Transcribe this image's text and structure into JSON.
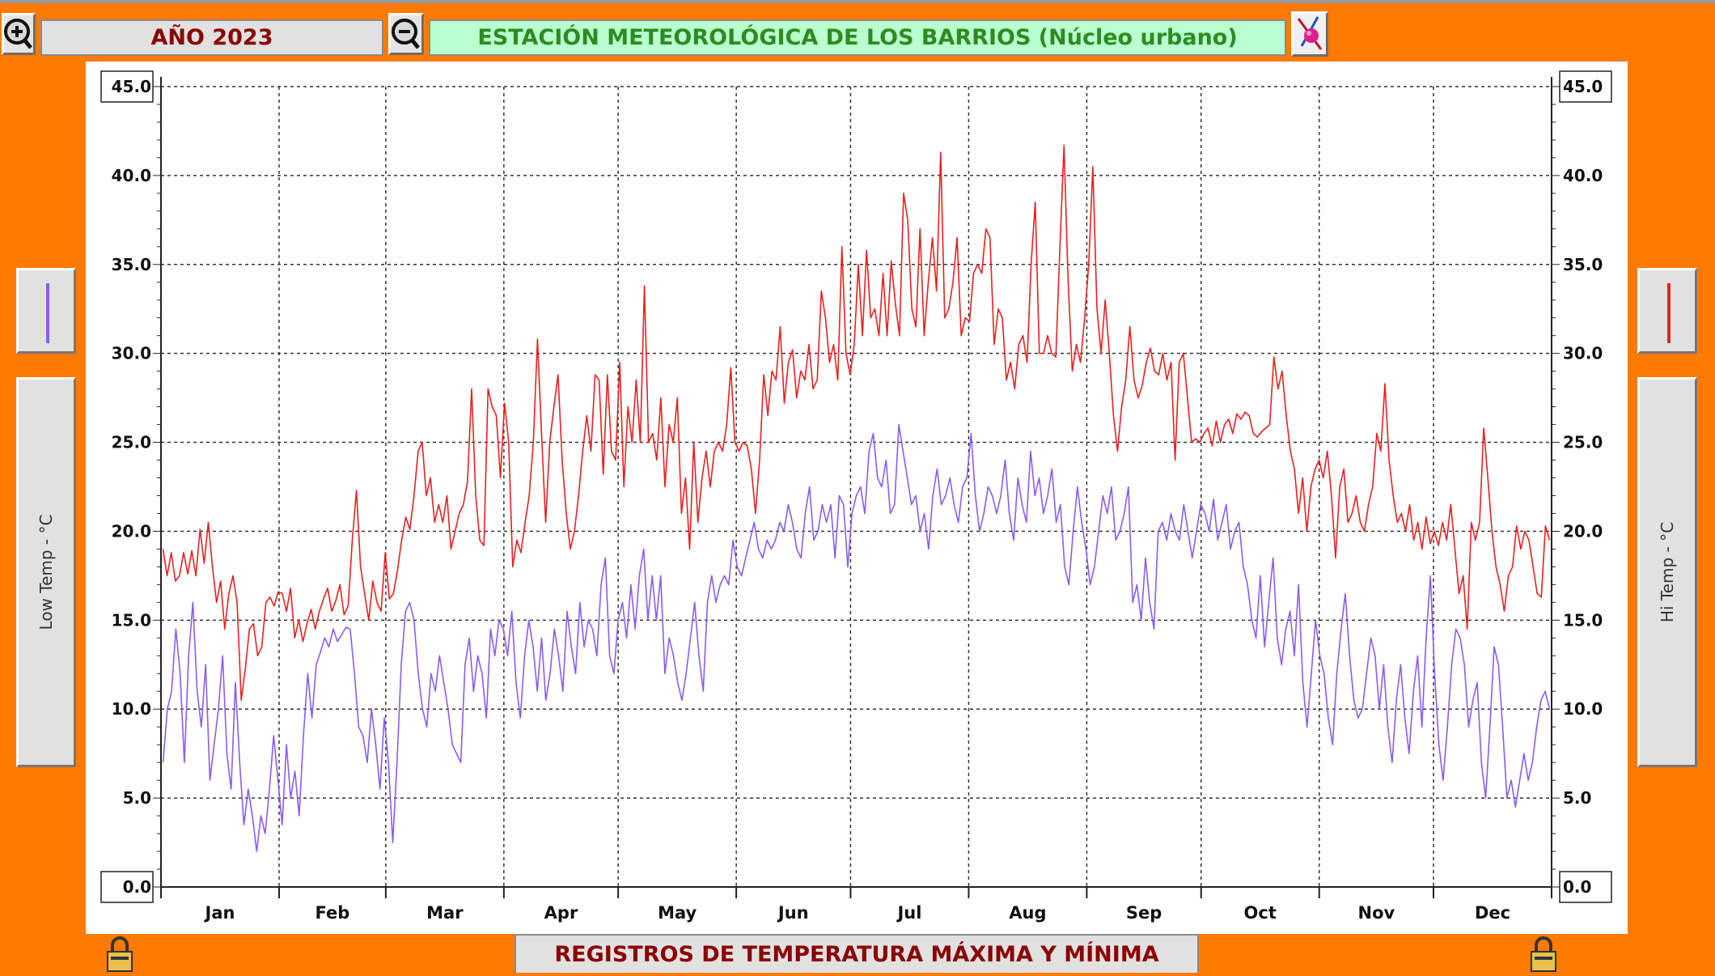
{
  "header": {
    "year_label": "AÑO 2023",
    "station_title": "ESTACIÓN METEOROLÓGICA DE LOS BARRIOS (Núcleo urbano)"
  },
  "footer": {
    "caption": "REGISTROS DE TEMPERATURA MÁXIMA Y MÍNIMA"
  },
  "left_panel": {
    "axis_label": "Low Temp - °C"
  },
  "right_panel": {
    "axis_label": "Hi Temp - °C"
  },
  "icons": {
    "zoom_in": "zoom-in-icon",
    "zoom_out": "zoom-out-icon",
    "paint": "paint-brush-icon",
    "lock": "lock-icon"
  },
  "colors": {
    "background": "#ff7a00",
    "hi_series": "#e82020",
    "low_series": "#8a5cf0",
    "year_text": "#8b0000",
    "station_text": "#2e8b22",
    "station_bg": "#b9ffcf"
  },
  "chart_data": {
    "type": "line",
    "ylabel_left": "Low Temp - °C",
    "ylabel_right": "Hi Temp - °C",
    "ylim": [
      0,
      45
    ],
    "yticks": [
      "0.0",
      "5.0",
      "10.0",
      "15.0",
      "20.0",
      "25.0",
      "30.0",
      "35.0",
      "40.0",
      "45.0"
    ],
    "months": [
      "Jan",
      "Feb",
      "Mar",
      "Apr",
      "May",
      "Jun",
      "Jul",
      "Aug",
      "Sep",
      "Oct",
      "Nov",
      "Dec"
    ],
    "month_days": [
      31,
      28,
      31,
      30,
      31,
      30,
      31,
      31,
      30,
      31,
      30,
      31
    ],
    "grid": true,
    "series": [
      {
        "key": "hi",
        "values": [
          19.0,
          17.5,
          18.8,
          17.2,
          17.5,
          18.8,
          17.6,
          18.9,
          17.5,
          20.1,
          18.2,
          20.5,
          18.0,
          16.0,
          17.2,
          14.5,
          16.5,
          17.5,
          16.0,
          10.5,
          12.3,
          14.5,
          14.8,
          13.0,
          13.5,
          16.0,
          16.3,
          15.8,
          16.6,
          16.5,
          15.5,
          16.8,
          14.0,
          15.0,
          13.8,
          14.8,
          15.6,
          14.5,
          15.5,
          16.2,
          16.8,
          15.5,
          16.1,
          17.0,
          15.3,
          15.8,
          19.5,
          22.3,
          18.0,
          16.5,
          15.0,
          17.2,
          16.0,
          15.5,
          18.8,
          16.2,
          16.5,
          17.8,
          19.5,
          20.8,
          20.1,
          22.0,
          24.5,
          25.0,
          22.0,
          23.0,
          20.5,
          21.5,
          20.5,
          22.0,
          19.0,
          20.0,
          21.0,
          21.5,
          22.8,
          28.0,
          22.0,
          19.5,
          19.2,
          28.0,
          27.0,
          26.5,
          23.0,
          27.2,
          25.0,
          18.0,
          19.5,
          18.8,
          20.5,
          22.0,
          25.0,
          30.8,
          25.5,
          20.5,
          25.0,
          27.0,
          28.8,
          24.0,
          21.0,
          19.0,
          20.0,
          22.0,
          24.5,
          26.5,
          24.5,
          28.8,
          28.5,
          23.2,
          28.8,
          24.5,
          24.0,
          29.5,
          22.5,
          27.0,
          25.0,
          28.5,
          25.0,
          33.8,
          25.0,
          25.5,
          24.0,
          27.5,
          22.5,
          26.0,
          25.0,
          27.5,
          21.0,
          23.0,
          19.0,
          25.0,
          20.5,
          23.0,
          24.5,
          22.5,
          24.5,
          25.0,
          24.5,
          26.0,
          29.2,
          25.0,
          24.5,
          25.0,
          24.8,
          23.5,
          21.0,
          24.0,
          28.8,
          26.5,
          29.0,
          28.5,
          31.5,
          27.2,
          29.5,
          30.2,
          27.5,
          29.0,
          28.5,
          30.5,
          28.0,
          28.5,
          33.5,
          32.0,
          29.5,
          30.5,
          28.5,
          36.0,
          30.0,
          28.8,
          30.5,
          35.0,
          31.0,
          35.8,
          32.0,
          32.5,
          31.0,
          34.5,
          31.0,
          35.2,
          32.8,
          31.0,
          39.0,
          37.5,
          32.5,
          31.5,
          37.0,
          31.0,
          34.0,
          36.5,
          33.5,
          41.3,
          32.0,
          32.5,
          34.0,
          36.5,
          31.0,
          32.0,
          31.8,
          34.5,
          35.0,
          34.5,
          37.0,
          36.5,
          30.5,
          32.5,
          32.0,
          28.5,
          29.5,
          28.0,
          30.5,
          31.0,
          29.5,
          35.0,
          38.5,
          30.0,
          30.0,
          31.0,
          30.0,
          29.8,
          36.0,
          41.7,
          34.0,
          29.0,
          30.5,
          29.5,
          32.0,
          35.0,
          40.5,
          32.5,
          30.0,
          33.0,
          30.0,
          26.5,
          24.5,
          27.0,
          28.5,
          31.5,
          28.5,
          27.5,
          28.2,
          29.5,
          30.3,
          29.0,
          28.8,
          30.0,
          28.5,
          29.5,
          24.0,
          29.5,
          30.0,
          27.5,
          25.0,
          25.2,
          25.0,
          25.5,
          25.8,
          24.8,
          26.2,
          25.0,
          26.0,
          26.3,
          25.5,
          26.6,
          26.3,
          26.7,
          26.5,
          25.5,
          25.3,
          25.6,
          25.8,
          26.0,
          29.8,
          28.0,
          29.0,
          26.5,
          24.5,
          23.5,
          21.0,
          23.0,
          20.0,
          22.5,
          23.5,
          24.0,
          23.0,
          24.5,
          22.0,
          18.5,
          22.5,
          23.5,
          20.5,
          21.0,
          22.0,
          20.5,
          20.0,
          21.5,
          22.5,
          25.5,
          24.5,
          28.3,
          24.0,
          22.0,
          20.5,
          21.0,
          20.0,
          21.5,
          19.5,
          20.5,
          19.0,
          20.8,
          19.3,
          20.0,
          19.2,
          20.5,
          19.5,
          21.5,
          19.0,
          16.5,
          17.5,
          14.5,
          20.5,
          19.5,
          20.5,
          25.8,
          23.0,
          20.0,
          18.0,
          17.0,
          15.5,
          17.5,
          18.0,
          20.3,
          19.0,
          20.0,
          19.5,
          18.0,
          16.5,
          16.3,
          20.3,
          19.5
        ]
      },
      {
        "key": "low",
        "values": [
          7.0,
          10.0,
          11.0,
          14.5,
          12.0,
          7.0,
          13.0,
          16.0,
          11.0,
          9.0,
          12.5,
          6.0,
          8.0,
          10.0,
          13.0,
          7.5,
          5.5,
          11.5,
          7.0,
          3.5,
          5.5,
          4.0,
          2.0,
          4.0,
          3.0,
          5.5,
          8.5,
          6.0,
          3.5,
          8.0,
          5.0,
          6.5,
          4.0,
          8.5,
          12.0,
          9.5,
          12.5,
          13.2,
          14.0,
          13.5,
          14.5,
          13.8,
          14.2,
          14.6,
          14.5,
          12.0,
          9.0,
          8.5,
          7.0,
          10.0,
          8.0,
          5.5,
          9.5,
          7.0,
          2.5,
          7.0,
          12.5,
          15.5,
          16.0,
          15.0,
          12.0,
          10.0,
          9.0,
          12.0,
          11.0,
          13.0,
          11.5,
          10.0,
          8.0,
          7.5,
          7.0,
          12.5,
          14.0,
          11.0,
          13.0,
          12.0,
          9.5,
          14.5,
          13.0,
          15.0,
          14.5,
          13.0,
          15.5,
          11.5,
          9.5,
          13.0,
          15.0,
          13.5,
          11.0,
          14.0,
          10.5,
          12.0,
          14.5,
          13.0,
          11.0,
          15.5,
          13.5,
          12.0,
          16.0,
          13.5,
          15.0,
          14.5,
          13.0,
          17.0,
          18.5,
          13.0,
          12.0,
          15.0,
          16.0,
          14.0,
          17.0,
          14.5,
          17.5,
          19.0,
          15.0,
          17.5,
          15.0,
          17.5,
          12.0,
          14.0,
          13.0,
          11.5,
          10.5,
          12.0,
          14.0,
          16.0,
          13.0,
          11.0,
          16.0,
          17.5,
          16.0,
          17.0,
          17.5,
          17.0,
          19.5,
          18.0,
          17.5,
          18.5,
          19.5,
          20.5,
          19.0,
          18.5,
          19.5,
          19.0,
          19.5,
          20.5,
          20.0,
          21.5,
          20.5,
          19.0,
          18.5,
          21.0,
          22.5,
          19.5,
          20.0,
          21.5,
          20.5,
          21.5,
          18.5,
          22.0,
          21.5,
          18.0,
          21.0,
          22.0,
          22.5,
          21.0,
          24.5,
          25.5,
          23.0,
          22.5,
          24.0,
          21.0,
          21.5,
          26.0,
          24.5,
          23.0,
          21.5,
          22.0,
          20.0,
          21.0,
          19.0,
          22.0,
          23.5,
          21.5,
          22.0,
          23.0,
          21.5,
          20.5,
          22.5,
          23.0,
          25.5,
          22.0,
          20.0,
          21.0,
          22.5,
          22.0,
          21.0,
          22.0,
          24.0,
          21.0,
          19.5,
          23.0,
          21.5,
          20.5,
          24.5,
          22.0,
          23.0,
          21.0,
          22.0,
          23.5,
          20.5,
          21.5,
          18.0,
          17.0,
          20.0,
          22.5,
          20.5,
          19.0,
          17.0,
          18.0,
          20.0,
          22.0,
          21.0,
          22.5,
          19.5,
          20.0,
          21.0,
          22.5,
          16.0,
          17.0,
          15.0,
          18.5,
          16.0,
          14.5,
          20.0,
          20.5,
          19.5,
          21.0,
          20.0,
          19.5,
          21.5,
          20.0,
          18.5,
          20.0,
          21.5,
          21.0,
          20.0,
          21.8,
          19.5,
          20.5,
          21.5,
          19.0,
          20.0,
          20.5,
          18.0,
          17.0,
          15.0,
          14.0,
          17.5,
          13.5,
          16.0,
          18.5,
          14.0,
          12.5,
          14.5,
          15.5,
          13.0,
          17.0,
          11.5,
          9.0,
          12.0,
          15.0,
          13.0,
          12.0,
          9.5,
          8.0,
          12.0,
          14.5,
          16.5,
          13.0,
          10.5,
          9.5,
          10.0,
          12.0,
          14.0,
          13.0,
          10.0,
          12.5,
          9.0,
          7.0,
          10.5,
          12.5,
          9.5,
          7.5,
          11.0,
          13.0,
          9.0,
          14.0,
          17.5,
          12.0,
          8.0,
          6.0,
          9.0,
          12.5,
          14.5,
          14.0,
          12.5,
          9.0,
          10.5,
          11.5,
          7.0,
          5.0,
          9.0,
          13.5,
          12.5,
          9.0,
          5.0,
          6.0,
          4.5,
          6.0,
          7.5,
          6.0,
          7.0,
          9.0,
          10.5,
          11.0,
          10.0
        ]
      }
    ]
  }
}
